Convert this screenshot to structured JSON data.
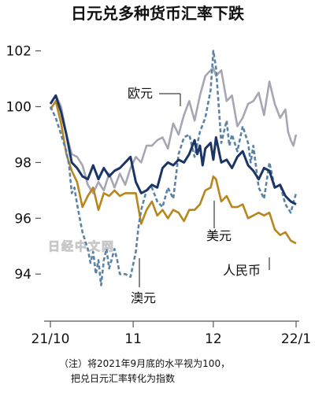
{
  "chart_data": {
    "type": "line",
    "title": "日元兑多种货币汇率下跌",
    "xlabel": "",
    "ylabel": "",
    "ylim": [
      92.2,
      102.3
    ],
    "yticks": [
      94,
      96,
      98,
      100,
      102
    ],
    "x_tick_labels": [
      "21/10",
      "11",
      "12",
      "22/1"
    ],
    "x_tick_positions": [
      0,
      31,
      61,
      92
    ],
    "watermark": "日经中文网",
    "footnote": [
      "（注）将2021年9月底的水平视为100，",
      "把兑日元汇率转化为指数"
    ],
    "colors": {
      "eur": "#a6a6b5",
      "aud": "#5b83a6",
      "usd": "#1b3566",
      "cny": "#b8861c"
    },
    "series": [
      {
        "key": "eur",
        "name": "欧元",
        "style": "solid",
        "points": [
          [
            0,
            100.1
          ],
          [
            2,
            100.4
          ],
          [
            4,
            100.0
          ],
          [
            6,
            99.0
          ],
          [
            8,
            98.3
          ],
          [
            10,
            98.2
          ],
          [
            12,
            97.9
          ],
          [
            14,
            97.2
          ],
          [
            16,
            96.9
          ],
          [
            18,
            97.3
          ],
          [
            20,
            97.0
          ],
          [
            22,
            97.6
          ],
          [
            24,
            97.1
          ],
          [
            26,
            97.6
          ],
          [
            28,
            97.2
          ],
          [
            30,
            97.8
          ],
          [
            32,
            98.2
          ],
          [
            34,
            98.0
          ],
          [
            36,
            98.6
          ],
          [
            38,
            98.6
          ],
          [
            40,
            98.8
          ],
          [
            42,
            98.9
          ],
          [
            44,
            98.5
          ],
          [
            46,
            99.4
          ],
          [
            48,
            99.0
          ],
          [
            50,
            99.7
          ],
          [
            52,
            100.2
          ],
          [
            54,
            99.5
          ],
          [
            56,
            100.4
          ],
          [
            58,
            101.1
          ],
          [
            60,
            101.3
          ],
          [
            61,
            101.4
          ],
          [
            62,
            101.1
          ],
          [
            64,
            101.3
          ],
          [
            66,
            100.2
          ],
          [
            68,
            100.4
          ],
          [
            70,
            99.3
          ],
          [
            72,
            99.6
          ],
          [
            74,
            100.1
          ],
          [
            76,
            100.2
          ],
          [
            78,
            100.5
          ],
          [
            80,
            99.7
          ],
          [
            82,
            100.9
          ],
          [
            84,
            100.1
          ],
          [
            86,
            99.6
          ],
          [
            88,
            99.9
          ],
          [
            89,
            99.1
          ],
          [
            90,
            98.8
          ],
          [
            91,
            98.6
          ],
          [
            92,
            99.0
          ]
        ]
      },
      {
        "key": "aud",
        "name": "澳元",
        "style": "dashed",
        "points": [
          [
            0,
            100.0
          ],
          [
            2,
            99.6
          ],
          [
            4,
            99.0
          ],
          [
            6,
            98.4
          ],
          [
            7,
            97.9
          ],
          [
            8,
            96.9
          ],
          [
            9,
            97.1
          ],
          [
            10,
            96.5
          ],
          [
            12,
            95.5
          ],
          [
            14,
            94.9
          ],
          [
            15,
            94.4
          ],
          [
            16,
            94.8
          ],
          [
            17,
            94.0
          ],
          [
            18,
            94.5
          ],
          [
            19,
            93.6
          ],
          [
            20,
            94.5
          ],
          [
            21,
            94.9
          ],
          [
            22,
            94.2
          ],
          [
            24,
            94.9
          ],
          [
            25,
            94.5
          ],
          [
            26,
            94.0
          ],
          [
            28,
            94.0
          ],
          [
            30,
            93.9
          ],
          [
            32,
            94.8
          ],
          [
            33,
            95.7
          ],
          [
            34,
            96.3
          ],
          [
            36,
            97.0
          ],
          [
            38,
            97.1
          ],
          [
            40,
            96.6
          ],
          [
            42,
            96.4
          ],
          [
            44,
            97.1
          ],
          [
            46,
            96.7
          ],
          [
            48,
            98.3
          ],
          [
            50,
            98.9
          ],
          [
            52,
            99.0
          ],
          [
            54,
            98.2
          ],
          [
            56,
            99.1
          ],
          [
            58,
            99.6
          ],
          [
            60,
            100.6
          ],
          [
            61,
            102.0
          ],
          [
            62,
            101.4
          ],
          [
            64,
            98.7
          ],
          [
            66,
            99.5
          ],
          [
            67,
            98.6
          ],
          [
            68,
            99.0
          ],
          [
            70,
            98.4
          ],
          [
            72,
            99.3
          ],
          [
            74,
            98.7
          ],
          [
            75,
            98.0
          ],
          [
            76,
            98.6
          ],
          [
            78,
            97.1
          ],
          [
            80,
            96.7
          ],
          [
            82,
            98.0
          ],
          [
            84,
            97.1
          ],
          [
            86,
            97.2
          ],
          [
            88,
            96.5
          ],
          [
            90,
            96.2
          ],
          [
            92,
            96.9
          ]
        ]
      },
      {
        "key": "usd",
        "name": "美元",
        "style": "solid",
        "points": [
          [
            0,
            100.1
          ],
          [
            2,
            100.4
          ],
          [
            4,
            99.8
          ],
          [
            6,
            99.0
          ],
          [
            8,
            98.0
          ],
          [
            10,
            97.8
          ],
          [
            12,
            97.5
          ],
          [
            14,
            97.4
          ],
          [
            16,
            97.9
          ],
          [
            18,
            97.4
          ],
          [
            20,
            97.8
          ],
          [
            22,
            97.5
          ],
          [
            24,
            97.7
          ],
          [
            26,
            97.8
          ],
          [
            28,
            98.0
          ],
          [
            30,
            98.2
          ],
          [
            32,
            97.3
          ],
          [
            34,
            96.9
          ],
          [
            36,
            97.0
          ],
          [
            38,
            97.2
          ],
          [
            40,
            97.1
          ],
          [
            42,
            97.8
          ],
          [
            44,
            98.0
          ],
          [
            46,
            97.9
          ],
          [
            48,
            98.1
          ],
          [
            50,
            98.0
          ],
          [
            52,
            98.3
          ],
          [
            54,
            98.8
          ],
          [
            55,
            98.3
          ],
          [
            56,
            98.6
          ],
          [
            57,
            97.9
          ],
          [
            58,
            98.5
          ],
          [
            60,
            98.7
          ],
          [
            61,
            98.1
          ],
          [
            62,
            98.9
          ],
          [
            64,
            98.0
          ],
          [
            66,
            98.1
          ],
          [
            68,
            97.8
          ],
          [
            70,
            98.2
          ],
          [
            72,
            98.4
          ],
          [
            74,
            97.9
          ],
          [
            76,
            97.7
          ],
          [
            78,
            97.4
          ],
          [
            80,
            97.8
          ],
          [
            82,
            97.7
          ],
          [
            84,
            97.1
          ],
          [
            86,
            97.2
          ],
          [
            88,
            96.8
          ],
          [
            90,
            96.6
          ],
          [
            92,
            96.5
          ]
        ]
      },
      {
        "key": "cny",
        "name": "人民币",
        "style": "solid",
        "points": [
          [
            0,
            99.9
          ],
          [
            2,
            100.2
          ],
          [
            4,
            99.4
          ],
          [
            6,
            98.3
          ],
          [
            8,
            97.7
          ],
          [
            10,
            97.3
          ],
          [
            12,
            96.4
          ],
          [
            14,
            96.8
          ],
          [
            16,
            97.1
          ],
          [
            18,
            96.3
          ],
          [
            20,
            96.9
          ],
          [
            22,
            96.8
          ],
          [
            24,
            97.0
          ],
          [
            26,
            96.8
          ],
          [
            28,
            96.9
          ],
          [
            30,
            96.9
          ],
          [
            32,
            96.9
          ],
          [
            34,
            95.8
          ],
          [
            36,
            96.3
          ],
          [
            38,
            96.6
          ],
          [
            40,
            96.1
          ],
          [
            42,
            96.3
          ],
          [
            44,
            96.0
          ],
          [
            46,
            96.3
          ],
          [
            48,
            96.2
          ],
          [
            50,
            95.9
          ],
          [
            52,
            96.3
          ],
          [
            54,
            96.3
          ],
          [
            56,
            96.5
          ],
          [
            58,
            97.0
          ],
          [
            60,
            97.1
          ],
          [
            61,
            97.5
          ],
          [
            62,
            97.4
          ],
          [
            64,
            96.6
          ],
          [
            66,
            96.8
          ],
          [
            68,
            96.4
          ],
          [
            70,
            96.4
          ],
          [
            72,
            96.5
          ],
          [
            74,
            96.0
          ],
          [
            76,
            96.1
          ],
          [
            78,
            96.2
          ],
          [
            80,
            96.1
          ],
          [
            82,
            96.2
          ],
          [
            84,
            95.6
          ],
          [
            86,
            95.4
          ],
          [
            88,
            95.5
          ],
          [
            90,
            95.2
          ],
          [
            92,
            95.1
          ]
        ]
      }
    ]
  }
}
